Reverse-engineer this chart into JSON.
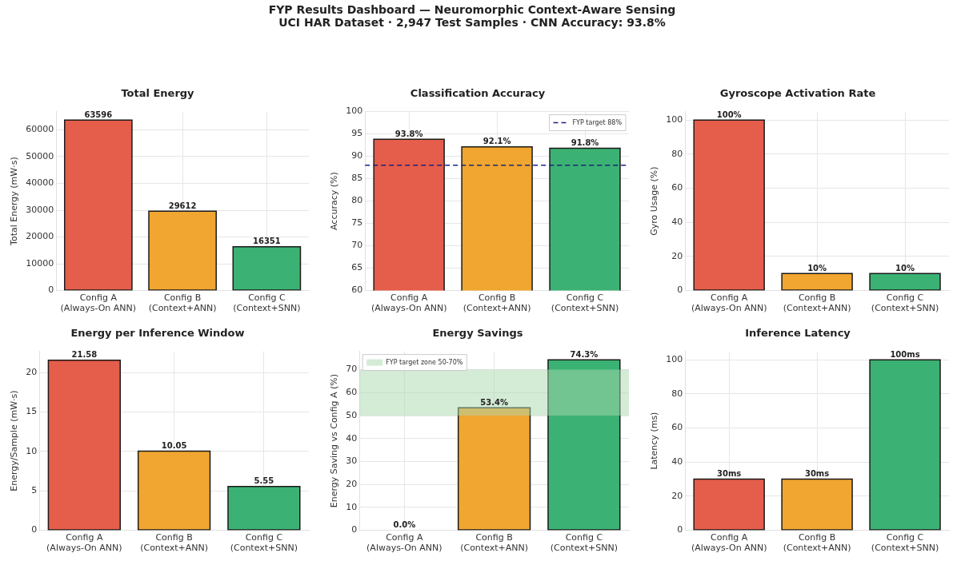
{
  "chart_data": [
    {
      "type": "other",
      "title": "FYP Results Dashboard — Neuromorphic Context-Aware Sensing",
      "subtitle": "UCI HAR Dataset · 2,947 Test Samples · CNN Accuracy: 93.8%"
    },
    {
      "type": "bar",
      "title": "Total Energy",
      "ylabel": "Total Energy (mW·s)",
      "categories": [
        "Config A\n(Always-On ANN)",
        "Config B\n(Context+ANN)",
        "Config C\n(Context+SNN)"
      ],
      "values": [
        63596,
        29612,
        16351
      ],
      "colors": [
        "#e55d4b",
        "#f0a630",
        "#3bb273"
      ],
      "ylim": [
        0,
        66800
      ],
      "yticks": [
        0,
        10000,
        20000,
        30000,
        40000,
        50000,
        60000
      ],
      "grid": true,
      "data_labels": true
    },
    {
      "type": "bar",
      "title": "Classification Accuracy",
      "ylabel": "Accuracy (%)",
      "categories": [
        "Config A\n(Always-On ANN)",
        "Config B\n(Context+ANN)",
        "Config C\n(Context+SNN)"
      ],
      "values": [
        93.8,
        92.1,
        91.8
      ],
      "colors": [
        "#e55d4b",
        "#f0a630",
        "#3bb273"
      ],
      "value_labels": [
        "93.8%",
        "92.1%",
        "91.8%"
      ],
      "ylim": [
        60,
        100
      ],
      "yticks": [
        60,
        65,
        70,
        75,
        80,
        85,
        90,
        95,
        100
      ],
      "grid": true,
      "legend": "top right",
      "ref_lines": [
        {
          "axis": "y",
          "value": 88,
          "label": "FYP target 88%",
          "color": "#1a237e",
          "line_style": "dashed"
        }
      ]
    },
    {
      "type": "bar",
      "title": "Gyroscope Activation Rate",
      "ylabel": "Gyro Usage (%)",
      "categories": [
        "Config A\n(Always-On ANN)",
        "Config B\n(Context+ANN)",
        "Config C\n(Context+SNN)"
      ],
      "values": [
        100,
        10,
        10
      ],
      "colors": [
        "#e55d4b",
        "#f0a630",
        "#3bb273"
      ],
      "value_labels": [
        "100%",
        "10%",
        "10%"
      ],
      "ylim": [
        0,
        105
      ],
      "yticks": [
        0,
        20,
        40,
        60,
        80,
        100
      ],
      "grid": true
    },
    {
      "type": "bar",
      "title": "Energy per Inference Window",
      "ylabel": "Energy/Sample (mW·s)",
      "categories": [
        "Config A\n(Always-On ANN)",
        "Config B\n(Context+ANN)",
        "Config C\n(Context+SNN)"
      ],
      "values": [
        21.58,
        10.05,
        5.55
      ],
      "colors": [
        "#e55d4b",
        "#f0a630",
        "#3bb273"
      ],
      "ylim": [
        0,
        22.7
      ],
      "yticks": [
        0,
        5,
        10,
        15,
        20
      ],
      "grid": true,
      "data_labels": true
    },
    {
      "type": "bar",
      "title": "Energy Savings",
      "ylabel": "Energy Saving vs Config A (%)",
      "categories": [
        "Config A\n(Always-On ANN)",
        "Config B\n(Context+ANN)",
        "Config C\n(Context+SNN)"
      ],
      "values": [
        0.0,
        53.4,
        74.3
      ],
      "colors": [
        "#e55d4b",
        "#f0a630",
        "#3bb273"
      ],
      "value_labels": [
        "0.0%",
        "53.4%",
        "74.3%"
      ],
      "ylim": [
        0,
        78
      ],
      "yticks": [
        0,
        10,
        20,
        30,
        40,
        50,
        60,
        70
      ],
      "grid": true,
      "legend": "top left",
      "bands": [
        {
          "axis": "y",
          "from": 50,
          "to": 70,
          "label": "FYP target zone 50-70%",
          "color": "#a9d8ae"
        }
      ]
    },
    {
      "type": "bar",
      "title": "Inference Latency",
      "ylabel": "Latency (ms)",
      "categories": [
        "Config A\n(Always-On ANN)",
        "Config B\n(Context+ANN)",
        "Config C\n(Context+SNN)"
      ],
      "values": [
        30,
        30,
        100
      ],
      "colors": [
        "#e55d4b",
        "#f0a630",
        "#3bb273"
      ],
      "value_labels": [
        "30ms",
        "30ms",
        "100ms"
      ],
      "ylim": [
        0,
        105
      ],
      "yticks": [
        0,
        20,
        40,
        60,
        80,
        100
      ],
      "grid": true
    }
  ]
}
